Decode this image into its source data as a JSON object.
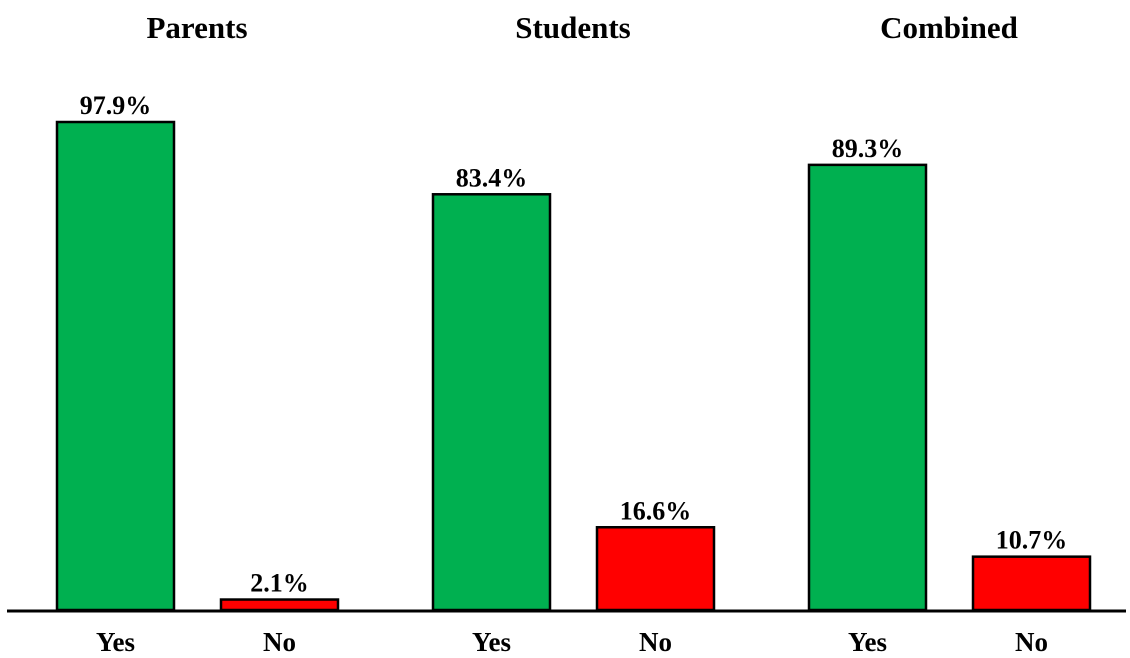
{
  "chart_data": {
    "type": "bar",
    "ylim": [
      0,
      100
    ],
    "grid": false,
    "legend": "none",
    "colors": {
      "Yes": "#00b050",
      "No": "#ff0000"
    },
    "panels": [
      {
        "title": "Parents",
        "categories": [
          "Yes",
          "No"
        ],
        "values": [
          97.9,
          2.1
        ],
        "data_labels": [
          "97.9%",
          "2.1%"
        ]
      },
      {
        "title": "Students",
        "categories": [
          "Yes",
          "No"
        ],
        "values": [
          83.4,
          16.6
        ],
        "data_labels": [
          "83.4%",
          "16.6%"
        ]
      },
      {
        "title": "Combined",
        "categories": [
          "Yes",
          "No"
        ],
        "values": [
          89.3,
          10.7
        ],
        "data_labels": [
          "89.3%",
          "10.7%"
        ]
      }
    ]
  }
}
